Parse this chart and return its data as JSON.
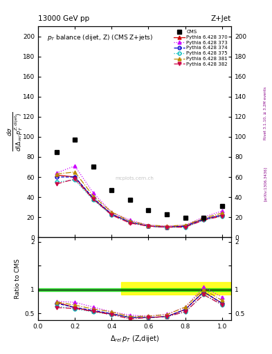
{
  "cms_x": [
    0.1,
    0.2,
    0.3,
    0.4,
    0.5,
    0.6,
    0.7,
    0.8,
    0.9,
    1.0
  ],
  "cms_y": [
    85,
    97,
    70,
    47,
    37,
    27,
    23,
    19,
    19,
    31
  ],
  "py370_x": [
    0.1,
    0.2,
    0.3,
    0.4,
    0.5,
    0.6,
    0.7,
    0.8,
    0.9,
    1.0
  ],
  "py370_y": [
    62,
    60,
    38,
    23,
    15,
    11,
    10,
    11,
    18,
    22
  ],
  "py373_x": [
    0.1,
    0.2,
    0.3,
    0.4,
    0.5,
    0.6,
    0.7,
    0.8,
    0.9,
    1.0
  ],
  "py373_y": [
    64,
    71,
    44,
    25,
    17,
    12,
    11,
    12,
    20,
    26
  ],
  "py374_x": [
    0.1,
    0.2,
    0.3,
    0.4,
    0.5,
    0.6,
    0.7,
    0.8,
    0.9,
    1.0
  ],
  "py374_y": [
    60,
    60,
    39,
    23,
    15,
    11,
    10,
    11,
    18,
    22
  ],
  "py375_x": [
    0.1,
    0.2,
    0.3,
    0.4,
    0.5,
    0.6,
    0.7,
    0.8,
    0.9,
    1.0
  ],
  "py375_y": [
    55,
    57,
    37,
    22,
    15,
    11,
    10,
    10,
    17,
    21
  ],
  "py381_x": [
    0.1,
    0.2,
    0.3,
    0.4,
    0.5,
    0.6,
    0.7,
    0.8,
    0.9,
    1.0
  ],
  "py381_y": [
    63,
    65,
    41,
    25,
    16,
    12,
    11,
    12,
    19,
    24
  ],
  "py382_x": [
    0.1,
    0.2,
    0.3,
    0.4,
    0.5,
    0.6,
    0.7,
    0.8,
    0.9,
    1.0
  ],
  "py382_y": [
    53,
    58,
    38,
    22,
    14,
    11,
    10,
    10,
    17,
    21
  ],
  "ratio_py370": [
    0.73,
    0.62,
    0.54,
    0.49,
    0.41,
    0.41,
    0.43,
    0.58,
    0.95,
    0.71
  ],
  "ratio_py373": [
    0.75,
    0.73,
    0.63,
    0.53,
    0.46,
    0.44,
    0.48,
    0.63,
    1.05,
    0.84
  ],
  "ratio_py374": [
    0.71,
    0.62,
    0.56,
    0.49,
    0.41,
    0.41,
    0.43,
    0.58,
    0.95,
    0.71
  ],
  "ratio_py375": [
    0.65,
    0.59,
    0.53,
    0.47,
    0.41,
    0.41,
    0.43,
    0.53,
    0.89,
    0.68
  ],
  "ratio_py381": [
    0.74,
    0.67,
    0.59,
    0.53,
    0.43,
    0.44,
    0.47,
    0.63,
    1.0,
    0.77
  ],
  "ratio_py382": [
    0.62,
    0.6,
    0.54,
    0.47,
    0.38,
    0.41,
    0.43,
    0.53,
    0.89,
    0.68
  ],
  "color_370": "#cc0000",
  "color_373": "#cc00ff",
  "color_374": "#0000cc",
  "color_375": "#00bbbb",
  "color_381": "#bb8800",
  "color_382": "#cc0044",
  "ylim_main": [
    0,
    210
  ],
  "ylim_ratio": [
    0.35,
    2.1
  ],
  "title_left": "13000 GeV pp",
  "title_right": "Z+Jet",
  "plot_title": "$p_T$ balance (dijet, Z) (CMS Z+jets)",
  "ylabel_main": "$\\frac{d\\sigma}{d(\\Delta_{rel}\\,p_T^{Z,dijet})}$",
  "ylabel_ratio": "Ratio to CMS",
  "xlabel": "$\\Delta_{rel}\\,p_T$ (Z,dijet)",
  "right_text1": "Rivet 3.1.10, ≥ 3.2M events",
  "right_text2": "[arXiv:1306.3436]",
  "watermark": "mcplots.cern.ch",
  "green_lo": 0.97,
  "green_hi": 1.03,
  "yellow_lo": 0.9,
  "yellow_hi": 1.15,
  "yellow_xstart": 0.45
}
